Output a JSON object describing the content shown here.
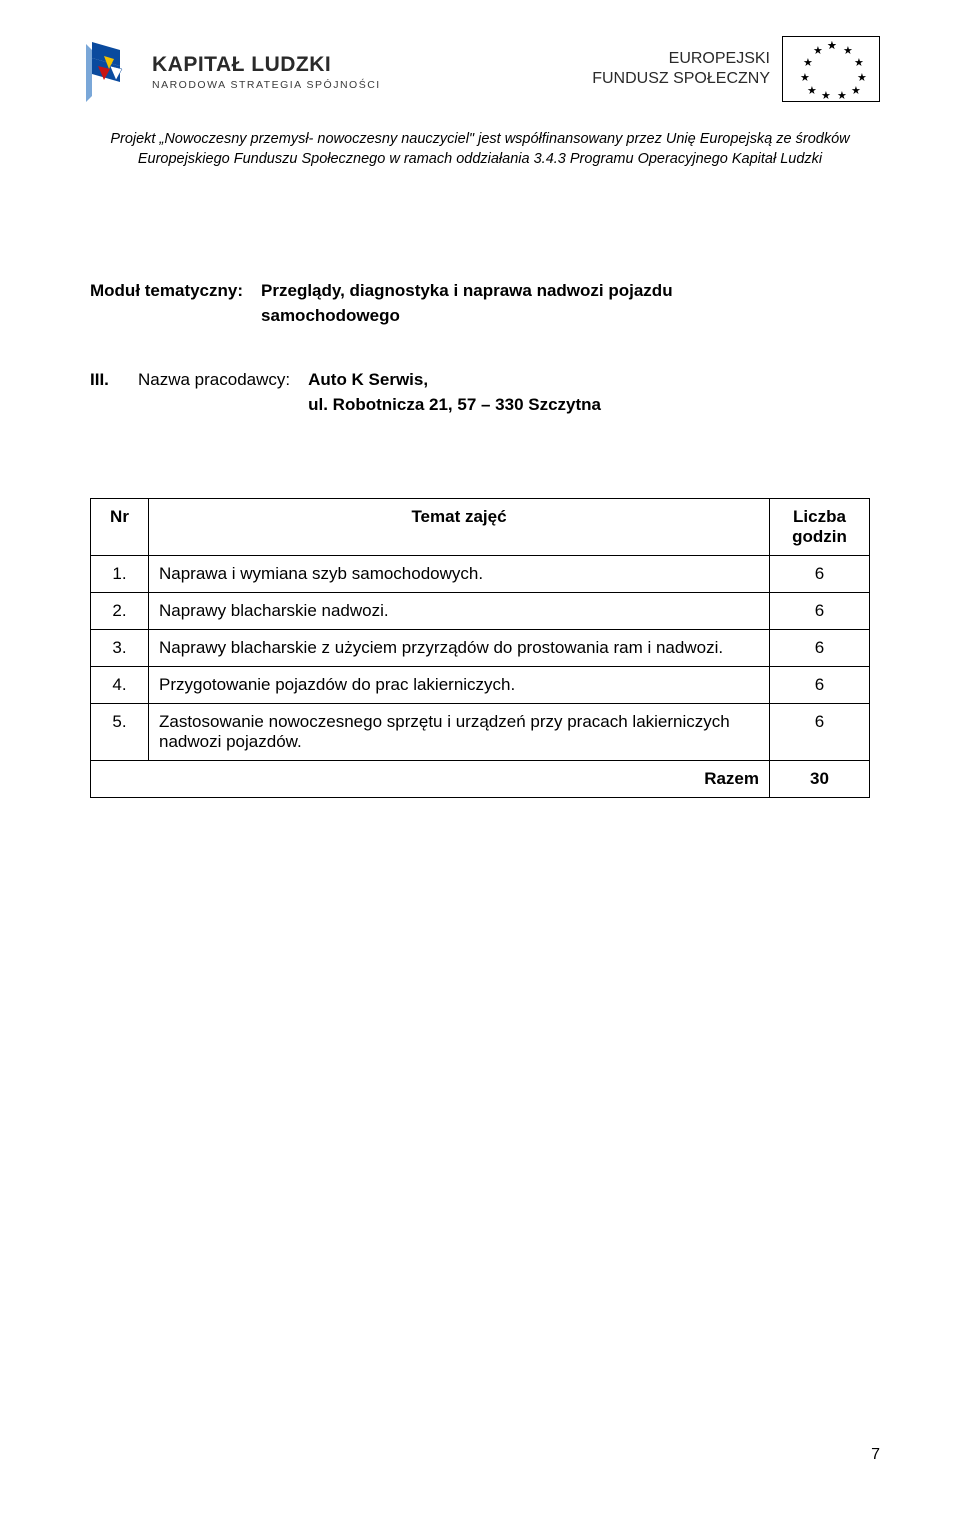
{
  "header": {
    "kl_title": "KAPITAŁ LUDZKI",
    "kl_sub": "NARODOWA STRATEGIA SPÓJNOŚCI",
    "efs_line1": "EUROPEJSKI",
    "efs_line2": "FUNDUSZ SPOŁECZNY",
    "kl_flag_colors": {
      "blue": "#0a4a9e",
      "yellow": "#f2c200",
      "red": "#c81414",
      "shadow": "#7aa7d8"
    }
  },
  "project_note": "Projekt „Nowoczesny przemysł- nowoczesny nauczyciel\" jest współfinansowany przez Unię Europejską ze środków Europejskiego Funduszu Społecznego w ramach oddziałania 3.4.3  Programu Operacyjnego Kapitał Ludzki",
  "module": {
    "label": "Moduł tematyczny:",
    "value_line1": "Przeglądy, diagnostyka i naprawa nadwozi pojazdu",
    "value_line2": "samochodowego"
  },
  "employer": {
    "roman": "III.",
    "label": "Nazwa pracodawcy:",
    "name": "Auto K Serwis,",
    "address": "ul. Robotnicza 21,  57 – 330 Szczytna"
  },
  "table": {
    "columns": {
      "nr": "Nr",
      "topic": "Temat zajęć",
      "hours": "Liczba godzin"
    },
    "rows": [
      {
        "nr": "1.",
        "topic": "Naprawa i wymiana szyb samochodowych.",
        "hours": "6",
        "justify": false
      },
      {
        "nr": "2.",
        "topic": "Naprawy blacharskie nadwozi.",
        "hours": "6",
        "justify": false
      },
      {
        "nr": "3.",
        "topic": "Naprawy blacharskie z użyciem przyrządów do prostowania ram i nadwozi.",
        "hours": "6",
        "justify": true
      },
      {
        "nr": "4.",
        "topic": "Przygotowanie pojazdów do prac lakierniczych.",
        "hours": "6",
        "justify": false
      },
      {
        "nr": "5.",
        "topic": "Zastosowanie nowoczesnego sprzętu i urządzeń przy pracach lakierniczych nadwozi pojazdów.",
        "hours": "6",
        "justify": false
      }
    ],
    "total_label": "Razem",
    "total_hours": "30"
  },
  "page_number": "7"
}
